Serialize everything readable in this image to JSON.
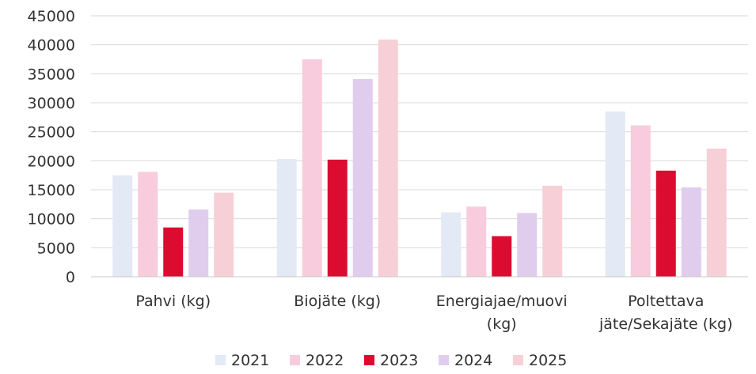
{
  "chart_data": {
    "type": "bar",
    "title": "",
    "xlabel": "",
    "ylabel": "",
    "ylim": [
      0,
      45000
    ],
    "yticks": [
      0,
      5000,
      10000,
      15000,
      20000,
      25000,
      30000,
      35000,
      40000,
      45000
    ],
    "grid": true,
    "legend_position": "bottom",
    "categories": [
      [
        "Pahvi (kg)"
      ],
      [
        "Biojäte (kg)"
      ],
      [
        "Energiajae/muovi",
        "(kg)"
      ],
      [
        "Poltettava",
        "jäte/Sekajäte (kg)"
      ]
    ],
    "series": [
      {
        "name": "2021",
        "color": "#e3e9f5",
        "values": [
          17500,
          20300,
          11100,
          28500
        ]
      },
      {
        "name": "2022",
        "color": "#f8ccdc",
        "values": [
          18100,
          37500,
          12100,
          26100
        ]
      },
      {
        "name": "2023",
        "color": "#dc0c31",
        "values": [
          8500,
          20200,
          7000,
          18300
        ]
      },
      {
        "name": "2024",
        "color": "#e0cded",
        "values": [
          11600,
          34100,
          11000,
          15400
        ]
      },
      {
        "name": "2025",
        "color": "#f7d0d7",
        "values": [
          14500,
          40900,
          15700,
          22100
        ]
      }
    ]
  }
}
